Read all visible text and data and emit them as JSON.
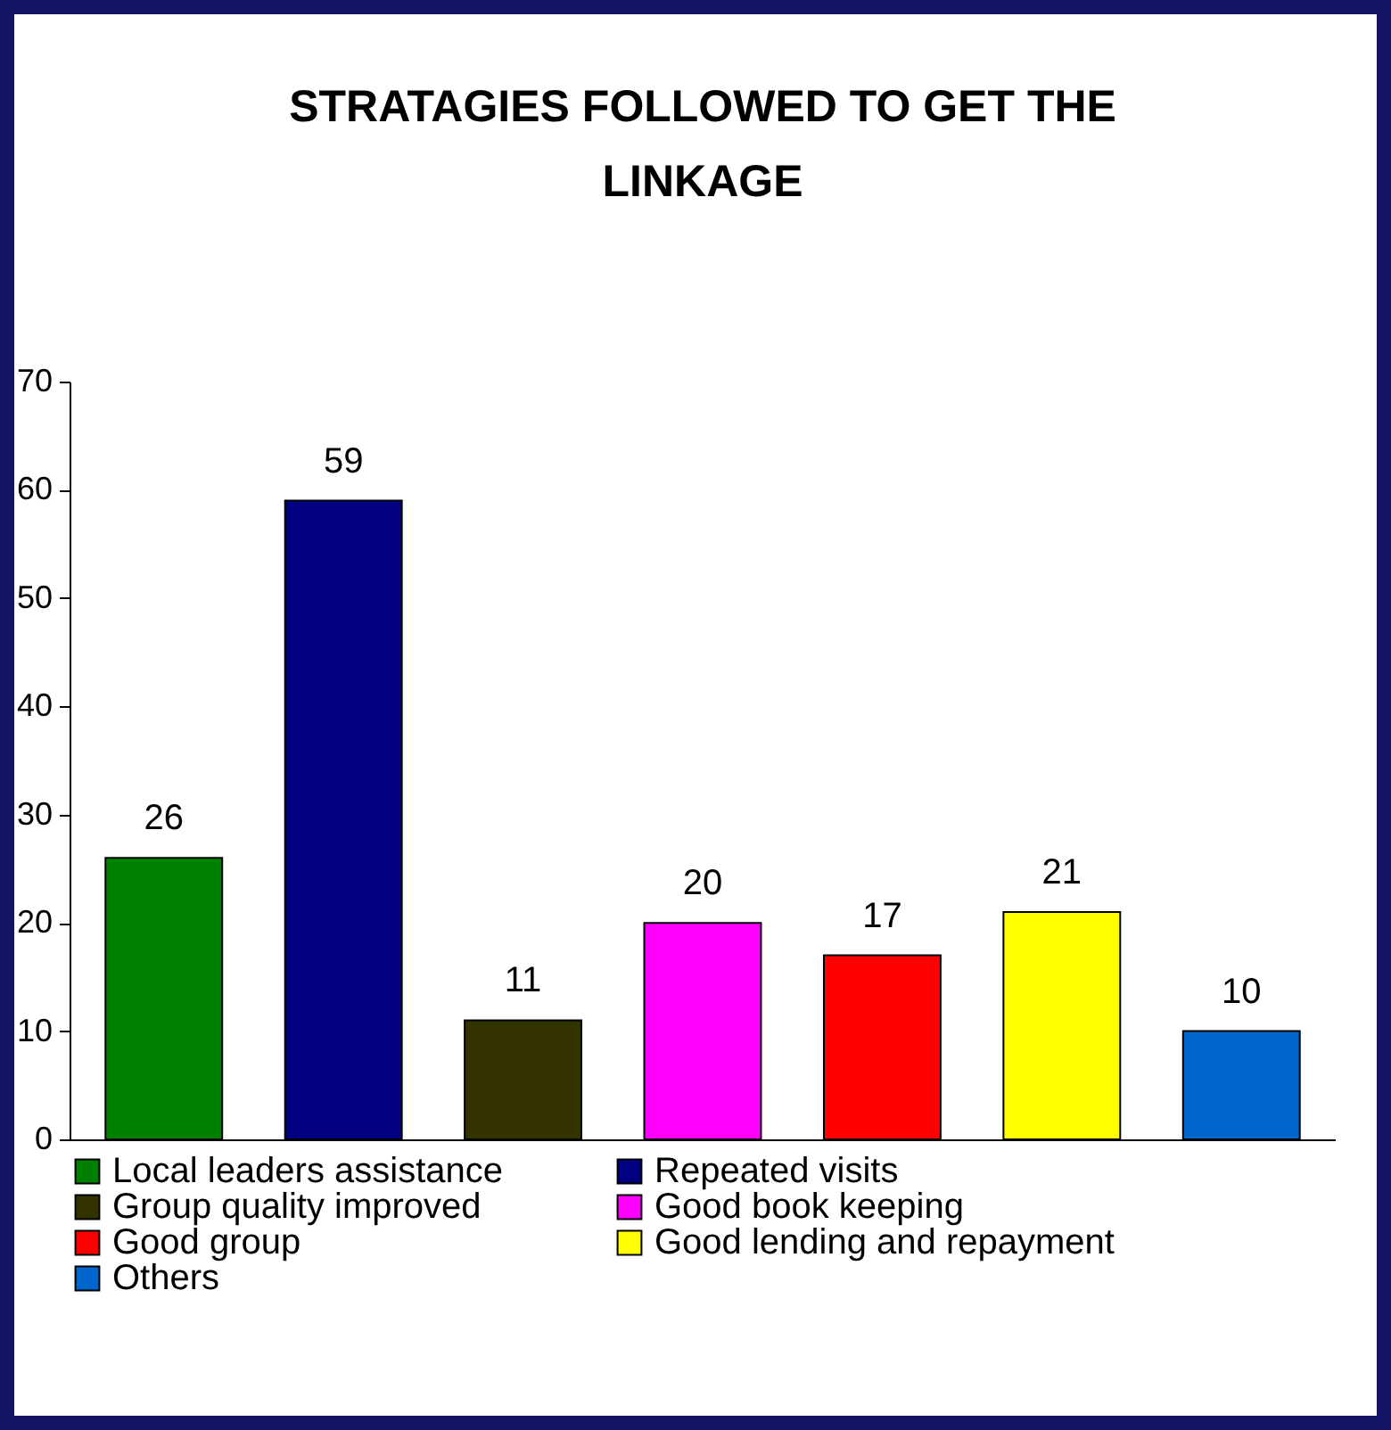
{
  "chart_data": {
    "type": "bar",
    "title": "STRATAGIES FOLLOWED TO GET THE LINKAGE",
    "categories": [
      null,
      null,
      null,
      null,
      null,
      null,
      null
    ],
    "series": [
      {
        "name": "Local leaders assistance",
        "color": "#008000",
        "values": [
          26,
          null,
          null,
          null,
          null,
          null,
          null
        ]
      },
      {
        "name": "Repeated visits",
        "color": "#000080",
        "values": [
          null,
          59,
          null,
          null,
          null,
          null,
          null
        ]
      },
      {
        "name": "Group quality improved",
        "color": "#333300",
        "values": [
          null,
          null,
          11,
          null,
          null,
          null,
          null
        ]
      },
      {
        "name": "Good book keeping",
        "color": "#ff00ff",
        "values": [
          null,
          null,
          null,
          20,
          null,
          null,
          null
        ]
      },
      {
        "name": "Good  group",
        "color": "#ff0000",
        "values": [
          null,
          null,
          null,
          null,
          17,
          null,
          null
        ]
      },
      {
        "name": "Good lending and repayment",
        "color": "#ffff00",
        "values": [
          null,
          null,
          null,
          null,
          null,
          21,
          null
        ]
      },
      {
        "name": "Others",
        "color": "#0066cc",
        "values": [
          null,
          null,
          null,
          null,
          null,
          null,
          10
        ]
      }
    ],
    "ylim": [
      0,
      70
    ],
    "yticks": [
      0,
      10,
      20,
      30,
      40,
      50,
      60,
      70
    ],
    "data_labels": true,
    "legend": "bottom",
    "grid": false
  }
}
